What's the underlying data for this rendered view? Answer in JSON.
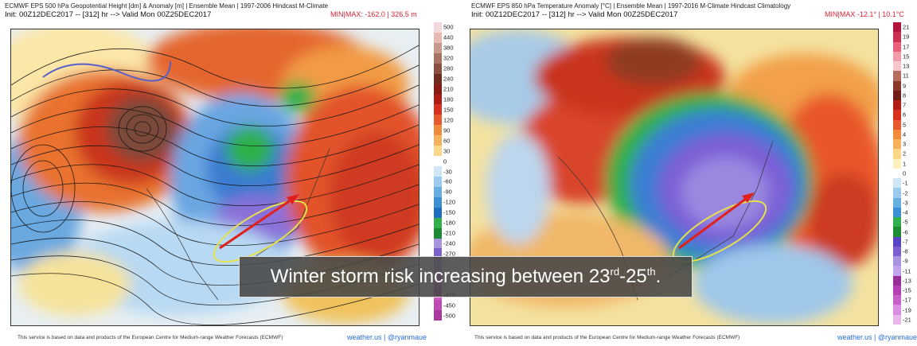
{
  "left": {
    "title": "ECMWF EPS 500 hPa Geopotential Height [dm] & Anomaly [m] | Ensemble Mean | 1997-2006 Hindcast M-Climate",
    "init": "Init: 00Z12DEC2017 -- [312] hr --> Valid Mon 00Z25DEC2017",
    "minmax": "MIN|MAX: -162.0 | 326.5 m",
    "colorbar": [
      "500",
      "440",
      "380",
      "320",
      "280",
      "240",
      "210",
      "180",
      "150",
      "120",
      "90",
      "60",
      "30",
      "0",
      "-30",
      "-60",
      "-90",
      "-120",
      "-150",
      "-180",
      "-210",
      "-240",
      "-270",
      "-",
      "-",
      "-",
      "-410",
      "-450",
      "-500"
    ],
    "footer": "This service is based on data and products of the European Centre for Medium-range Weather Forecasts (ECMWF)",
    "brand": "weather.us | @ryanmaue"
  },
  "right": {
    "title": "ECMWF EPS 850 hPa Temperature Anomaly [°C] | Ensemble Mean | 1997-2016 M-Climate Hindcast Climatology",
    "init": "Init: 00Z12DEC2017 -- [312] hr --> Valid Mon 00Z25DEC2017",
    "minmax": "MIN|MAX -12.1° | 10.1°C",
    "colorbar": [
      "21",
      "19",
      "17",
      "15",
      "13",
      "11",
      "9",
      "8",
      "7",
      "6",
      "5",
      "4",
      "3",
      "2",
      "1",
      "0",
      "-1",
      "-2",
      "-3",
      "-4",
      "-5",
      "-6",
      "-7",
      "-8",
      "-9",
      "-11",
      "-13",
      "-15",
      "-17",
      "-19",
      "-21"
    ],
    "footer": "This service is based on data and products of the European Centre for Medium-range Weather Forecasts (ECMWF)",
    "brand": "weather.us | @ryanmaue"
  },
  "banner": {
    "text": "Winter storm risk increasing between 23",
    "sup1": "rd",
    "dash": "-25",
    "sup2": "th",
    "end": "."
  },
  "colors": {
    "ridge": "#d8452a",
    "trough_blue": "#3f8fd8",
    "green": "#2fb04a",
    "purple": "#8a6fd8",
    "annotation_arrow": "#e0201a",
    "annotation_ellipse": "#e6e24a"
  }
}
